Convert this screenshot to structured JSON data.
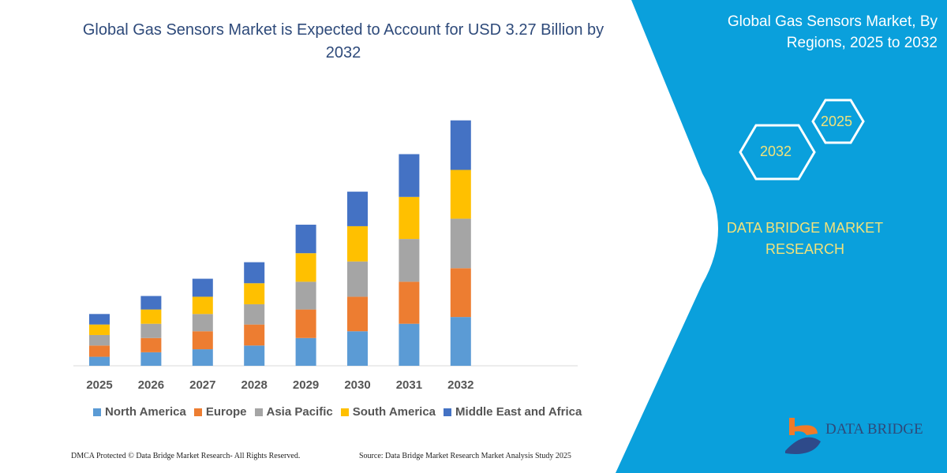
{
  "header": {
    "title": "Global Gas Sensors Market is Expected to Account for USD 3.27 Billion by 2032"
  },
  "side": {
    "title": "Global Gas Sensors Market, By Regions, 2025 to 2032",
    "hex_a": "2025",
    "hex_b": "2032",
    "brand": "DATA BRIDGE MARKET RESEARCH",
    "logo": "DATA BRIDGE",
    "logo_sub": "MARKET RESEARCH"
  },
  "footer": {
    "left": "DMCA Protected © Data Bridge Market Research-  All Rights Reserved.",
    "right": "Source: Data Bridge Market Research  Market Analysis Study 2025"
  },
  "colors": {
    "panel": "#0aa0dc",
    "title": "#2e4a7a",
    "accent_text": "#f2e27a"
  },
  "chart_data": {
    "type": "bar",
    "stacked": true,
    "title": "Global Gas Sensors Market is Expected to Account for USD 3.27 Billion by 2032",
    "categories": [
      "2025",
      "2026",
      "2027",
      "2028",
      "2029",
      "2030",
      "2031",
      "2032"
    ],
    "legend_position": "bottom",
    "grid": false,
    "series": [
      {
        "name": "North America",
        "color": "#5b9bd5",
        "values": [
          0.12,
          0.18,
          0.22,
          0.27,
          0.37,
          0.46,
          0.56,
          0.65
        ]
      },
      {
        "name": "Europe",
        "color": "#ed7d31",
        "values": [
          0.15,
          0.19,
          0.24,
          0.28,
          0.38,
          0.46,
          0.56,
          0.65
        ]
      },
      {
        "name": "Asia Pacific",
        "color": "#a5a5a5",
        "values": [
          0.14,
          0.19,
          0.23,
          0.27,
          0.37,
          0.47,
          0.57,
          0.66
        ]
      },
      {
        "name": "South America",
        "color": "#ffc000",
        "values": [
          0.14,
          0.19,
          0.23,
          0.28,
          0.38,
          0.47,
          0.56,
          0.65
        ]
      },
      {
        "name": "Middle East and Africa",
        "color": "#4472c4",
        "values": [
          0.14,
          0.18,
          0.24,
          0.28,
          0.38,
          0.46,
          0.57,
          0.66
        ]
      }
    ]
  }
}
